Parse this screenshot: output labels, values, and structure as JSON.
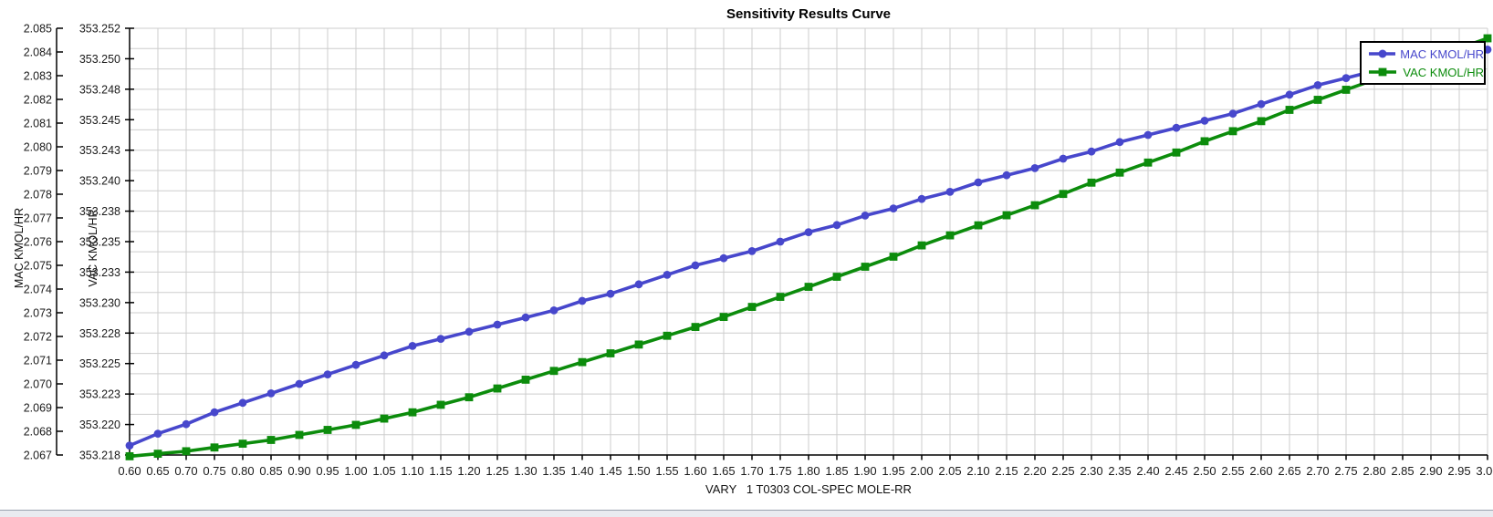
{
  "colors": {
    "grid": "#cdcdcd",
    "axis": "#000000",
    "tick_text": "#1a1a1a",
    "background": "#ffffff",
    "footer_strip": "#e9ebf0",
    "footer_border": "#9aa2ae"
  },
  "chart_data": {
    "type": "line",
    "title": "Sensitivity Results Curve",
    "xlabel": "VARY   1 T0303 COL-SPEC MOLE-RR",
    "grid": true,
    "x_axis": {
      "min": 0.6,
      "max": 3.0,
      "tick_labels": [
        "0.60",
        "0.65",
        "0.70",
        "0.75",
        "0.80",
        "0.85",
        "0.90",
        "0.95",
        "1.00",
        "1.05",
        "1.10",
        "1.15",
        "1.20",
        "1.25",
        "1.30",
        "1.35",
        "1.40",
        "1.45",
        "1.50",
        "1.55",
        "1.60",
        "1.65",
        "1.70",
        "1.75",
        "1.80",
        "1.85",
        "1.90",
        "1.95",
        "2.00",
        "2.05",
        "2.10",
        "2.15",
        "2.20",
        "2.25",
        "2.30",
        "2.35",
        "2.40",
        "2.45",
        "2.50",
        "2.55",
        "2.60",
        "2.65",
        "2.70",
        "2.75",
        "2.80",
        "2.85",
        "2.90",
        "2.95",
        "3.00"
      ]
    },
    "y_axes": [
      {
        "id": "mac",
        "label": "MAC KMOL/HR",
        "min": 2.067,
        "max": 2.085,
        "tick_labels": [
          "2.085",
          "2.084",
          "2.083",
          "2.082",
          "2.081",
          "2.080",
          "2.079",
          "2.078",
          "2.077",
          "2.076",
          "2.075",
          "2.074",
          "2.073",
          "2.072",
          "2.071",
          "2.070",
          "2.069",
          "2.068",
          "2.067"
        ]
      },
      {
        "id": "vac",
        "label": "VAC KMOL/HR",
        "min": 353.218,
        "max": 353.252,
        "tick_labels": [
          "353.252",
          "353.250",
          "353.248",
          "353.245",
          "353.243",
          "353.240",
          "353.238",
          "353.235",
          "353.233",
          "353.230",
          "353.228",
          "353.225",
          "353.223",
          "353.220",
          "353.218"
        ]
      }
    ],
    "legend": {
      "position": "top-right",
      "entries": [
        {
          "label": "MAC KMOL/HR",
          "color": "#4747cc",
          "marker": "circle"
        },
        {
          "label": "VAC KMOL/HR",
          "color": "#0c8c0c",
          "marker": "square"
        }
      ]
    },
    "series": [
      {
        "name": "MAC KMOL/HR",
        "axis": "mac",
        "color": "#4747cc",
        "marker": "circle",
        "x": [
          0.6,
          0.65,
          0.7,
          0.75,
          0.8,
          0.85,
          0.9,
          0.95,
          1.0,
          1.05,
          1.1,
          1.15,
          1.2,
          1.25,
          1.3,
          1.35,
          1.4,
          1.45,
          1.5,
          1.55,
          1.6,
          1.65,
          1.7,
          1.75,
          1.8,
          1.85,
          1.9,
          1.95,
          2.0,
          2.05,
          2.1,
          2.15,
          2.2,
          2.25,
          2.3,
          2.35,
          2.4,
          2.45,
          2.5,
          2.55,
          2.6,
          2.65,
          2.7,
          2.75,
          2.8,
          2.85,
          2.9,
          2.95,
          3.0
        ],
        "values": [
          2.0674,
          2.0679,
          2.0683,
          2.0688,
          2.0692,
          2.0696,
          2.07,
          2.0704,
          2.0708,
          2.0712,
          2.0716,
          2.0719,
          2.0722,
          2.0725,
          2.0728,
          2.0731,
          2.0735,
          2.0738,
          2.0742,
          2.0746,
          2.075,
          2.0753,
          2.0756,
          2.076,
          2.0764,
          2.0767,
          2.0771,
          2.0774,
          2.0778,
          2.0781,
          2.0785,
          2.0788,
          2.0791,
          2.0795,
          2.0798,
          2.0802,
          2.0805,
          2.0808,
          2.0811,
          2.0814,
          2.0818,
          2.0822,
          2.0826,
          2.0829,
          2.0832,
          2.0835,
          2.0837,
          2.0839,
          2.0841
        ]
      },
      {
        "name": "VAC KMOL/HR",
        "axis": "vac",
        "color": "#0c8c0c",
        "marker": "square",
        "x": [
          0.6,
          0.65,
          0.7,
          0.75,
          0.8,
          0.85,
          0.9,
          0.95,
          1.0,
          1.05,
          1.1,
          1.15,
          1.2,
          1.25,
          1.3,
          1.35,
          1.4,
          1.45,
          1.5,
          1.55,
          1.6,
          1.65,
          1.7,
          1.75,
          1.8,
          1.85,
          1.9,
          1.95,
          2.0,
          2.05,
          2.1,
          2.15,
          2.2,
          2.25,
          2.3,
          2.35,
          2.4,
          2.45,
          2.5,
          2.55,
          2.6,
          2.65,
          2.7,
          2.75,
          2.8,
          2.85,
          2.9,
          2.95,
          3.0
        ],
        "values": [
          353.2179,
          353.2181,
          353.2183,
          353.2186,
          353.2189,
          353.2192,
          353.2196,
          353.22,
          353.2204,
          353.2209,
          353.2214,
          353.222,
          353.2226,
          353.2233,
          353.224,
          353.2247,
          353.2254,
          353.2261,
          353.2268,
          353.2275,
          353.2282,
          353.229,
          353.2298,
          353.2306,
          353.2314,
          353.2322,
          353.233,
          353.2338,
          353.2347,
          353.2355,
          353.2363,
          353.2371,
          353.2379,
          353.2388,
          353.2397,
          353.2405,
          353.2413,
          353.2421,
          353.243,
          353.2438,
          353.2446,
          353.2455,
          353.2463,
          353.2471,
          353.2479,
          353.2488,
          353.2496,
          353.2504,
          353.2512
        ]
      }
    ]
  }
}
